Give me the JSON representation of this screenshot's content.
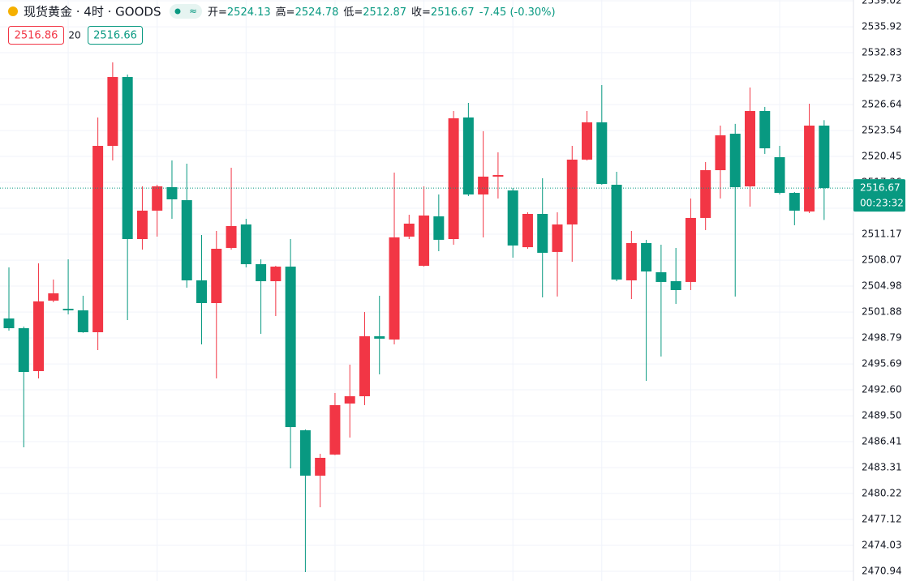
{
  "chart_data": {
    "type": "candlestick",
    "title": "现货黄金 · 4时 · GOODS",
    "header": [
      {
        "label": "开=",
        "value": 2524.13
      },
      {
        "label": "高=",
        "value": 2524.78
      },
      {
        "label": "低=",
        "value": 2512.87
      },
      {
        "label": "收=",
        "value": 2516.67
      }
    ],
    "change": "-7.45 (-0.30%)",
    "bid": 2516.86,
    "spread": 20,
    "ask": 2516.66,
    "last_price": 2516.67,
    "countdown": "00:23:32",
    "up_color": "#f23645",
    "down_color": "#089981",
    "open": [
      2501.11,
      2499.95,
      2494.83,
      2503.24,
      2502.27,
      2502.08,
      2499.47,
      2521.71,
      2529.93,
      2510.59,
      2513.98,
      2516.78,
      2515.23,
      2505.66,
      2502.95,
      2509.53,
      2512.33,
      2507.59,
      2505.56,
      2507.3,
      2487.77,
      2482.35,
      2484.87,
      2490.96,
      2491.83,
      2498.99,
      2498.6,
      2510.88,
      2507.4,
      2513.3,
      2510.59,
      2525.1,
      2515.91,
      2518.04,
      2516.39,
      2509.62,
      2513.59,
      2509.05,
      2512.33,
      2520.07,
      2524.52,
      2517.07,
      2505.66,
      2510.11,
      2506.63,
      2505.56,
      2505.47,
      2513.11,
      2518.81,
      2523.16,
      2516.88,
      2525.87,
      2520.36,
      2516.1,
      2513.88,
      2524.13
    ],
    "high": [
      2507.21,
      2500.15,
      2507.69,
      2505.76,
      2508.17,
      2503.82,
      2525.1,
      2531.68,
      2530.22,
      2516.88,
      2517.07,
      2519.97,
      2519.59,
      2511.08,
      2511.56,
      2519.1,
      2513.01,
      2508.17,
      2507.4,
      2510.59,
      2487.86,
      2484.96,
      2492.22,
      2495.6,
      2501.89,
      2503.82,
      2518.52,
      2513.49,
      2516.88,
      2515.91,
      2525.87,
      2526.84,
      2523.46,
      2520.94,
      2516.68,
      2513.78,
      2517.85,
      2513.78,
      2521.71,
      2525.87,
      2528.97,
      2518.62,
      2511.56,
      2510.5,
      2509.92,
      2509.53,
      2515.43,
      2519.78,
      2524.13,
      2524.33,
      2528.68,
      2526.36,
      2521.71,
      2516.2,
      2526.74,
      2524.78
    ],
    "low": [
      2499.66,
      2485.74,
      2493.96,
      2503.05,
      2501.6,
      2499.4,
      2497.34,
      2519.97,
      2500.92,
      2509.33,
      2510.88,
      2513.01,
      2504.79,
      2498.02,
      2493.96,
      2509.33,
      2507.21,
      2499.28,
      2501.4,
      2483.22,
      2470.84,
      2478.58,
      2484.8,
      2486.9,
      2490.77,
      2494.44,
      2498.02,
      2510.59,
      2507.3,
      2509.14,
      2509.92,
      2515.72,
      2510.79,
      2515.43,
      2508.37,
      2509.43,
      2503.63,
      2503.73,
      2507.88,
      2519.97,
      2517.07,
      2505.56,
      2503.43,
      2493.67,
      2496.57,
      2502.85,
      2504.5,
      2511.66,
      2515.43,
      2503.73,
      2514.46,
      2520.75,
      2515.91,
      2512.24,
      2513.69,
      2512.87
    ],
    "close": [
      2499.95,
      2494.73,
      2503.15,
      2504.11,
      2502.08,
      2499.47,
      2521.71,
      2529.93,
      2510.59,
      2513.98,
      2516.88,
      2515.33,
      2505.66,
      2502.95,
      2509.43,
      2512.14,
      2507.59,
      2505.56,
      2507.3,
      2488.15,
      2482.35,
      2484.48,
      2490.77,
      2491.83,
      2498.99,
      2498.7,
      2510.79,
      2512.43,
      2513.4,
      2510.5,
      2525.0,
      2515.91,
      2518.04,
      2518.23,
      2509.82,
      2513.59,
      2508.95,
      2512.33,
      2520.07,
      2524.52,
      2517.17,
      2505.76,
      2510.11,
      2506.72,
      2505.47,
      2504.5,
      2513.11,
      2518.81,
      2522.97,
      2516.78,
      2525.87,
      2521.42,
      2516.1,
      2513.98,
      2524.13,
      2516.67
    ],
    "ylim": [
      2469.78,
      2539.12
    ],
    "yticks": [
      2539.02,
      2535.92,
      2532.83,
      2529.73,
      2526.64,
      2523.54,
      2520.45,
      2517.36,
      2514.26,
      2511.17,
      2508.07,
      2504.98,
      2501.88,
      2498.79,
      2495.69,
      {
        "value": 2492.6,
        "label": "2492.60"
      },
      {
        "value": 2489.5,
        "label": "2489.50"
      },
      2486.41,
      2483.31,
      2480.22,
      2477.12,
      2474.03,
      2470.94
    ],
    "grid": true
  }
}
